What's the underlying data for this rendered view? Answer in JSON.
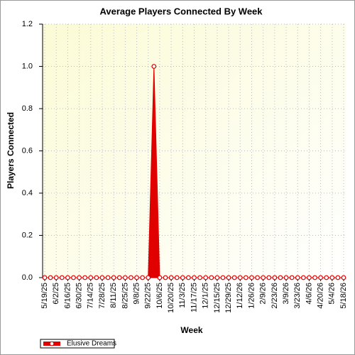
{
  "chart_data": {
    "type": "area",
    "title": "Average Players Connected By Week",
    "x_label": "Week",
    "y_label": "Players Connected",
    "categories": [
      "5/19/25",
      null,
      "6/2/25",
      null,
      "6/16/25",
      null,
      "6/30/25",
      null,
      "7/14/25",
      null,
      "7/28/25",
      null,
      "8/11/25",
      null,
      "8/25/25",
      null,
      "9/8/25",
      null,
      "9/22/25",
      null,
      "10/6/25",
      null,
      "10/20/25",
      null,
      "11/3/25",
      null,
      "11/17/25",
      null,
      "12/1/25",
      null,
      "12/15/25",
      null,
      "12/29/25",
      null,
      "1/12/26",
      null,
      "1/26/26",
      null,
      "2/9/26",
      null,
      "2/23/26",
      null,
      "3/9/26",
      null,
      "3/23/26",
      null,
      "4/6/26",
      null,
      "4/20/26",
      null,
      "5/4/26",
      null,
      "5/18/26"
    ],
    "series": [
      {
        "name": "Elusive Dreams",
        "color": "#e00000",
        "values": [
          0,
          0,
          0,
          0,
          0,
          0,
          0,
          0,
          0,
          0,
          0,
          0,
          0,
          0,
          0,
          0,
          0,
          0,
          0,
          1,
          0,
          0,
          0,
          0,
          0,
          0,
          0,
          0,
          0,
          0,
          0,
          0,
          0,
          0,
          0,
          0,
          0,
          0,
          0,
          0,
          0,
          0,
          0,
          0,
          0,
          0,
          0,
          0,
          0,
          0,
          0,
          0,
          0
        ]
      }
    ],
    "ylim": [
      0,
      1.2
    ],
    "yticks": [
      {
        "value": 0,
        "label": "0.0"
      },
      0.2,
      0.4,
      0.6,
      0.8,
      {
        "value": 1,
        "label": "1.0"
      },
      1.2
    ],
    "grid": true,
    "legend": "bottom-left"
  }
}
